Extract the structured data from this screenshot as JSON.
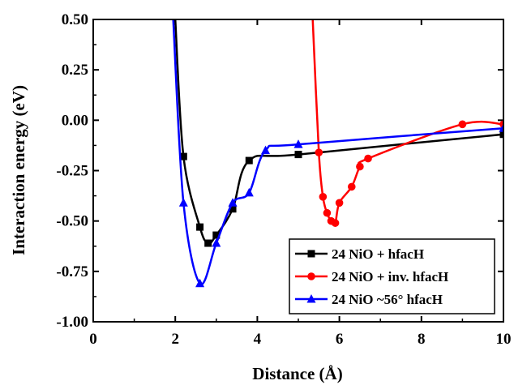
{
  "chart_data": {
    "type": "line",
    "xlabel": "Distance (Å)",
    "ylabel": "Interaction energy (eV)",
    "xlim": [
      0,
      10
    ],
    "ylim": [
      -1.0,
      0.5
    ],
    "xticks": [
      0,
      2,
      4,
      6,
      8,
      10
    ],
    "yticks": [
      -1.0,
      -0.75,
      -0.5,
      -0.25,
      0.0,
      0.25,
      0.5
    ],
    "xtick_labels": [
      "0",
      "2",
      "4",
      "6",
      "8",
      "10"
    ],
    "ytick_labels": [
      "-1.00",
      "-0.75",
      "-0.50",
      "-0.25",
      "0.00",
      "0.25",
      "0.50"
    ],
    "grid": false,
    "legend_position": "bottom-right",
    "series": [
      {
        "name": "24 NiO + hfacH",
        "color": "#000000",
        "marker": "square",
        "x": [
          2.0,
          2.2,
          2.6,
          2.8,
          3.0,
          3.4,
          3.8,
          5.0,
          10.0
        ],
        "y": [
          0.5,
          -0.18,
          -0.53,
          -0.61,
          -0.57,
          -0.44,
          -0.2,
          -0.17,
          -0.07
        ]
      },
      {
        "name": "24 NiO + inv. hfacH",
        "color": "#ff0000",
        "marker": "circle",
        "x": [
          5.35,
          5.5,
          5.6,
          5.7,
          5.8,
          5.9,
          6.0,
          6.3,
          6.5,
          6.7,
          9.0,
          10.0
        ],
        "y": [
          0.5,
          -0.16,
          -0.38,
          -0.46,
          -0.5,
          -0.51,
          -0.41,
          -0.33,
          -0.23,
          -0.19,
          -0.02,
          -0.02
        ]
      },
      {
        "name": "24 NiO ~56° hfacH",
        "color": "#0000ff",
        "marker": "triangle",
        "x": [
          1.95,
          2.2,
          2.6,
          3.0,
          3.4,
          3.8,
          4.2,
          5.0,
          10.0
        ],
        "y": [
          0.5,
          -0.41,
          -0.81,
          -0.61,
          -0.41,
          -0.36,
          -0.15,
          -0.12,
          -0.04
        ]
      }
    ]
  }
}
